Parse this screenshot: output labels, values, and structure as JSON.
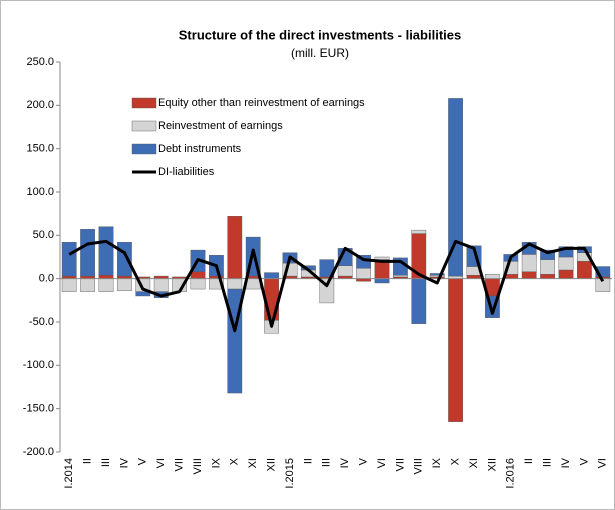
{
  "chart_data": {
    "type": "bar",
    "title": "Structure of the direct investments - liabilities",
    "subtitle": "(mill. EUR)",
    "categories": [
      "I.2014",
      "II",
      "III",
      "IV",
      "V",
      "VI",
      "VII",
      "VIII",
      "IX",
      "X",
      "XI",
      "XII",
      "I.2015",
      "II",
      "III",
      "IV",
      "V",
      "VI",
      "VII",
      "VIII",
      "IX",
      "X",
      "XI",
      "XII",
      "I.2016",
      "II",
      "III",
      "IV",
      "V",
      "VI"
    ],
    "series": [
      {
        "name": "Equity other  than reinvestment of earnings",
        "color": "#c0392b",
        "values": [
          3,
          3,
          4,
          3,
          2,
          3,
          2,
          8,
          3,
          72,
          3,
          -48,
          3,
          2,
          2,
          3,
          -3,
          22,
          2,
          52,
          2,
          -165,
          4,
          -20,
          5,
          8,
          5,
          10,
          20,
          2
        ]
      },
      {
        "name": "Reinvestment of earnings",
        "color": "#d4d4d4",
        "values": [
          -15,
          -15,
          -15,
          -14,
          -15,
          -15,
          -15,
          -12,
          -12,
          -12,
          -12,
          -15,
          15,
          8,
          -28,
          12,
          12,
          3,
          2,
          4,
          2,
          3,
          10,
          5,
          15,
          20,
          17,
          15,
          10,
          -15
        ]
      },
      {
        "name": "Debt instruments",
        "color": "#3f6db5",
        "values": [
          39,
          54,
          56,
          39,
          -5,
          -7,
          0,
          25,
          24,
          -120,
          45,
          7,
          12,
          5,
          20,
          20,
          15,
          -5,
          20,
          -52,
          2,
          205,
          24,
          -25,
          8,
          14,
          11,
          12,
          7,
          12
        ]
      },
      {
        "name": "DI-liabilities",
        "color": "#000000",
        "type": "line",
        "values": [
          28,
          40,
          43,
          30,
          -12,
          -20,
          -15,
          22,
          15,
          -60,
          33,
          -55,
          25,
          10,
          -8,
          35,
          22,
          20,
          20,
          5,
          -5,
          43,
          35,
          -40,
          25,
          40,
          30,
          35,
          35,
          -3
        ]
      }
    ],
    "ylim": [
      -200,
      250
    ],
    "yticks": [
      {
        "value": -200,
        "label": "-200.0"
      },
      {
        "value": -150,
        "label": "-150.0"
      },
      {
        "value": -100,
        "label": "-100.0"
      },
      {
        "value": -50,
        "label": "-50.0"
      },
      {
        "value": 0,
        "label": "0.0"
      },
      {
        "value": 50,
        "label": "50.0"
      },
      {
        "value": 100,
        "label": "100.0"
      },
      {
        "value": 150,
        "label": "150.0"
      },
      {
        "value": 200,
        "label": "200.0"
      },
      {
        "value": 250,
        "label": "250.0"
      }
    ],
    "legend": "top-left"
  }
}
